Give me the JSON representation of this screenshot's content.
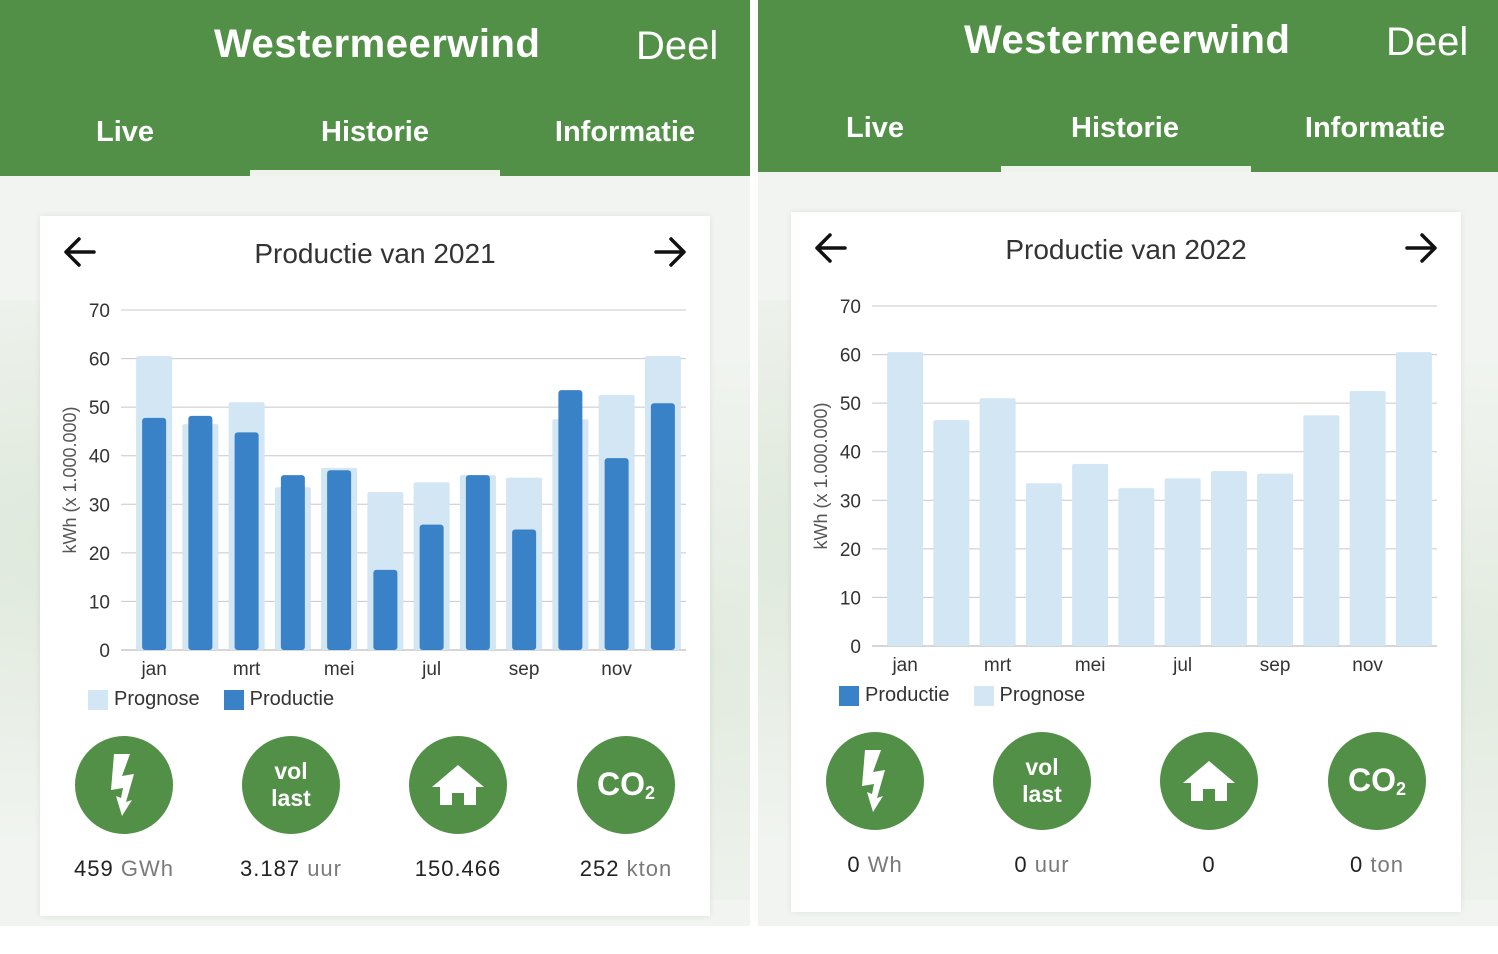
{
  "colors": {
    "brand_green": "#528f47",
    "productie": "#3a82c8",
    "prognose": "#d2e6f4"
  },
  "icons": [
    "back-arrow-icon",
    "forward-arrow-icon",
    "lightning-icon",
    "house-icon"
  ],
  "months": [
    "jan",
    "feb",
    "mrt",
    "apr",
    "mei",
    "jun",
    "jul",
    "aug",
    "sep",
    "okt",
    "nov",
    "dec"
  ],
  "panels": [
    {
      "app_title": "Westermeerwind",
      "share_label": "Deel",
      "tabs": [
        "Live",
        "Historie",
        "Informatie"
      ],
      "active_tab": "Historie",
      "card_title": "Productie van 2021",
      "legend": [
        "Prognose",
        "Productie"
      ],
      "stats": {
        "energy_value": "459",
        "energy_unit": "GWh",
        "vol_last_line1": "vol",
        "vol_last_line2": "last",
        "vol_last_value": "3.187",
        "vol_last_unit": "uur",
        "households_value": "150.466",
        "co2_label": "CO",
        "co2_sub": "2",
        "co2_value": "252",
        "co2_unit": "kton"
      }
    },
    {
      "app_title": "Westermeerwind",
      "share_label": "Deel",
      "tabs": [
        "Live",
        "Historie",
        "Informatie"
      ],
      "active_tab": "Historie",
      "card_title": "Productie van 2022",
      "legend": [
        "Productie",
        "Prognose"
      ],
      "stats": {
        "energy_value": "0",
        "energy_unit": "Wh",
        "vol_last_line1": "vol",
        "vol_last_line2": "last",
        "vol_last_value": "0",
        "vol_last_unit": "uur",
        "households_value": "0",
        "co2_label": "CO",
        "co2_sub": "2",
        "co2_value": "0",
        "co2_unit": "ton"
      }
    }
  ],
  "chart_data": [
    {
      "type": "bar",
      "title": "Productie van 2021",
      "ylabel": "kWh (x 1.000.000)",
      "ylim": [
        0,
        70
      ],
      "yticks": [
        0,
        10,
        20,
        30,
        40,
        50,
        60,
        70
      ],
      "categories": [
        "jan",
        "feb",
        "mrt",
        "apr",
        "mei",
        "jun",
        "jul",
        "aug",
        "sep",
        "okt",
        "nov",
        "dec"
      ],
      "x_tick_labels": [
        "jan",
        "mrt",
        "mei",
        "jul",
        "sep",
        "nov"
      ],
      "series": [
        {
          "name": "Prognose",
          "values": [
            60.5,
            46.5,
            51,
            33.5,
            37.5,
            32.5,
            34.5,
            36,
            35.5,
            47.5,
            52.5,
            60.5
          ]
        },
        {
          "name": "Productie",
          "values": [
            47.8,
            48.2,
            44.8,
            36,
            37,
            16.5,
            25.8,
            36,
            24.8,
            53.5,
            39.5,
            50.8
          ]
        }
      ],
      "grid": true,
      "legend_position": "bottom-left"
    },
    {
      "type": "bar",
      "title": "Productie van 2022",
      "ylabel": "kWh (x 1.000.000)",
      "ylim": [
        0,
        70
      ],
      "yticks": [
        0,
        10,
        20,
        30,
        40,
        50,
        60,
        70
      ],
      "categories": [
        "jan",
        "feb",
        "mrt",
        "apr",
        "mei",
        "jun",
        "jul",
        "aug",
        "sep",
        "okt",
        "nov",
        "dec"
      ],
      "x_tick_labels": [
        "jan",
        "mrt",
        "mei",
        "jul",
        "sep",
        "nov"
      ],
      "series": [
        {
          "name": "Productie",
          "values": [
            0,
            0,
            0,
            0,
            0,
            0,
            0,
            0,
            0,
            0,
            0,
            0
          ]
        },
        {
          "name": "Prognose",
          "values": [
            60.5,
            46.5,
            51,
            33.5,
            37.5,
            32.5,
            34.5,
            36,
            35.5,
            47.5,
            52.5,
            60.5
          ]
        }
      ],
      "grid": true,
      "legend_position": "bottom-left"
    }
  ]
}
